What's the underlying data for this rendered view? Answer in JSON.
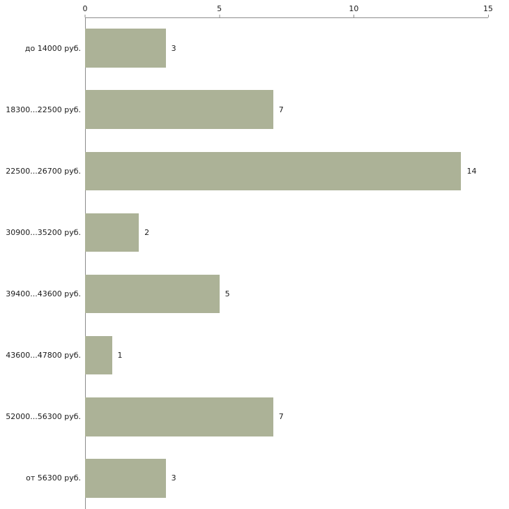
{
  "chart_data": {
    "type": "bar",
    "orientation": "horizontal",
    "title": "",
    "xlabel": "",
    "ylabel": "",
    "categories": [
      "до 14000 руб.",
      "18300...22500 руб.",
      "22500...26700 руб.",
      "30900...35200 руб.",
      "39400...43600 руб.",
      "43600...47800 руб.",
      "52000...56300 руб.",
      "от 56300 руб."
    ],
    "values": [
      3,
      7,
      14,
      2,
      5,
      1,
      7,
      3
    ],
    "xlim": [
      0,
      15
    ],
    "xticks": [
      0,
      5,
      10,
      15
    ],
    "grid": false,
    "legend": false,
    "axis_position": "top",
    "bar_color": "#acb297",
    "axis_color": "#8c8c8c",
    "text_color": "#1a1a1a",
    "background_color": "#ffffff"
  }
}
